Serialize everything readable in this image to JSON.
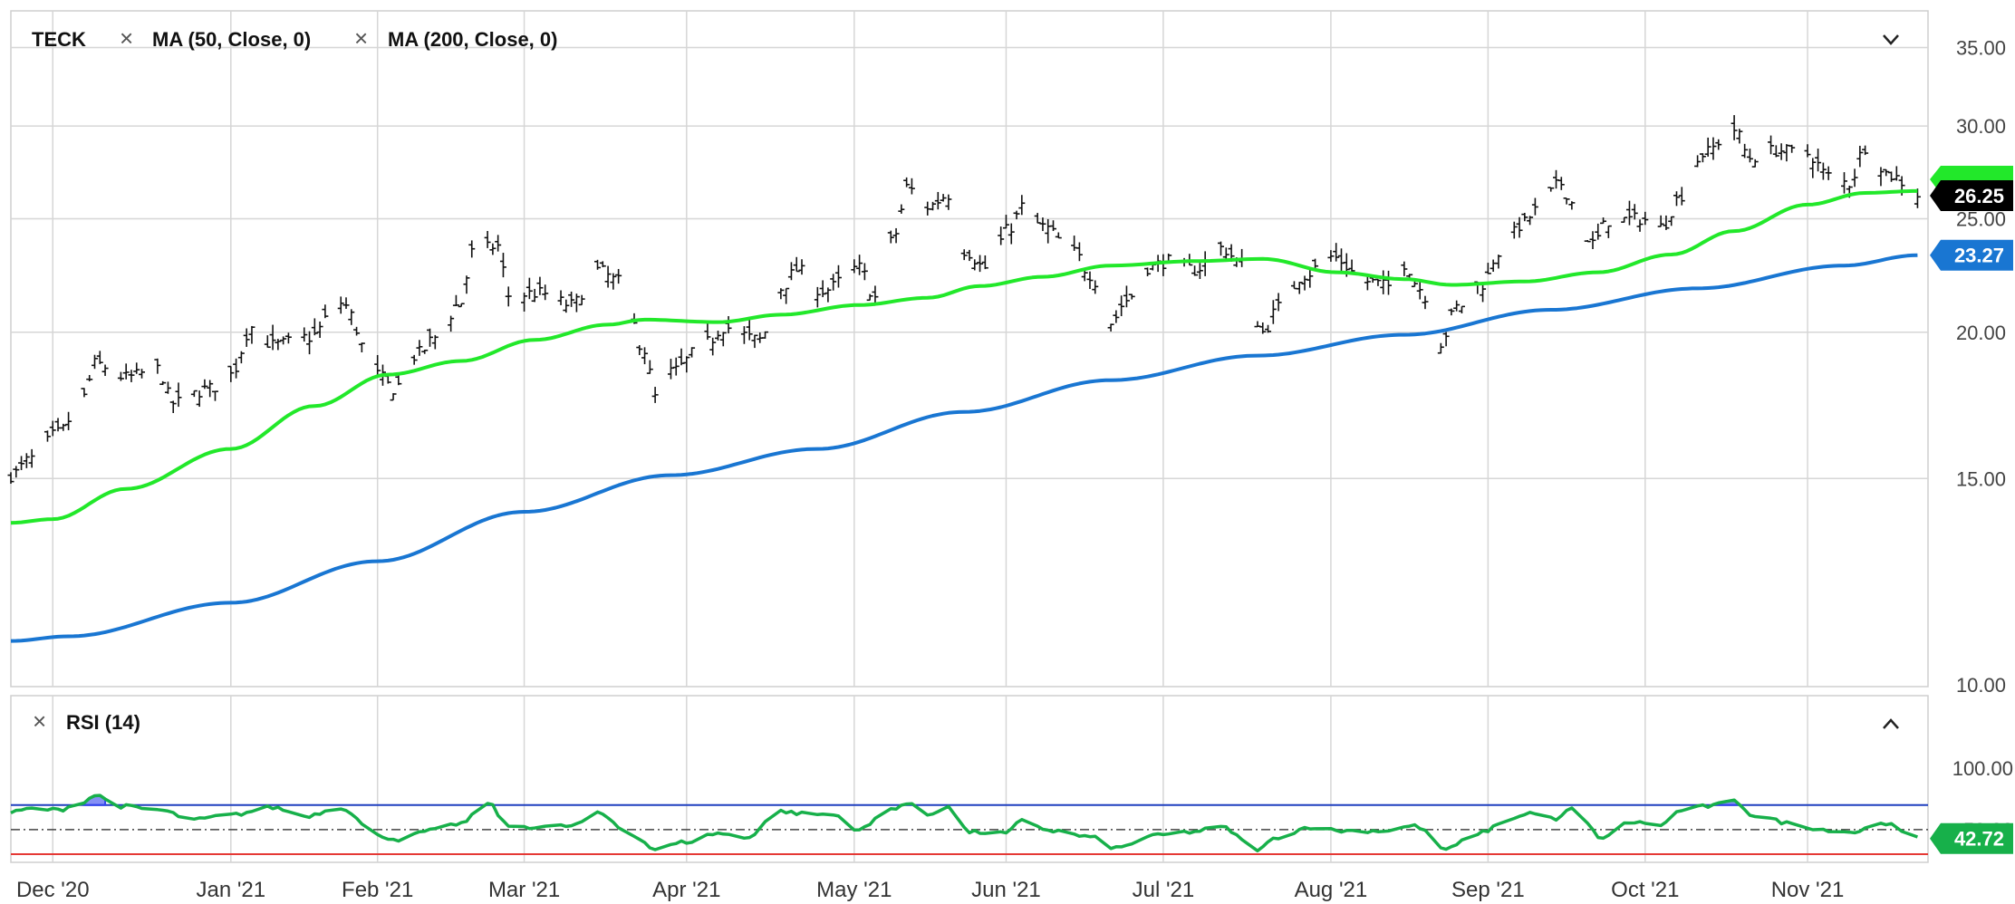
{
  "header": {
    "symbol": "TECK",
    "ma50_label": "MA (50, Close, 0)",
    "ma200_label": "MA (200, Close, 0)",
    "rsi_label": "RSI (14)"
  },
  "colors": {
    "price_bar": "#111111",
    "ma50": "#22e82a",
    "ma200": "#1976d2",
    "rsi_line": "#17b04a",
    "rsi_over": "#3344ee",
    "rsi_upper": "#1f3fbf",
    "rsi_lower": "#e53935",
    "grid": "#d6d6d6",
    "badge_price": "#000000",
    "badge_ma200": "#1976d2",
    "badge_rsi": "#17b04a"
  },
  "chart_data": [
    {
      "type": "ohlc",
      "scale": "log",
      "ylim": [
        10,
        36
      ],
      "y_ticks": [
        "35.00",
        "30.00",
        "25.00",
        "20.00",
        "15.00",
        "10.00"
      ],
      "x_ticks": [
        "Dec '20",
        "Jan '21",
        "Feb '21",
        "Mar '21",
        "Apr '21",
        "May '21",
        "Jun '21",
        "Jul '21",
        "Aug '21",
        "Sep '21",
        "Oct '21",
        "Nov '21"
      ],
      "x_range": [
        "2020-11-23",
        "2021-11-24"
      ],
      "price_anchors": [
        [
          "2020-11-23",
          15.1
        ],
        [
          "2020-11-27",
          15.6
        ],
        [
          "2020-12-02",
          16.4
        ],
        [
          "2020-12-07",
          17.6
        ],
        [
          "2020-12-09",
          18.8
        ],
        [
          "2020-12-15",
          18.3
        ],
        [
          "2020-12-21",
          18.6
        ],
        [
          "2020-12-24",
          17.4
        ],
        [
          "2020-12-31",
          17.9
        ],
        [
          "2021-01-04",
          18.4
        ],
        [
          "2021-01-08",
          20.2
        ],
        [
          "2021-01-12",
          19.5
        ],
        [
          "2021-01-19",
          19.8
        ],
        [
          "2021-01-25",
          21.2
        ],
        [
          "2021-02-01",
          18.4
        ],
        [
          "2021-02-04",
          17.9
        ],
        [
          "2021-02-09",
          19.2
        ],
        [
          "2021-02-12",
          19.8
        ],
        [
          "2021-02-17",
          21.2
        ],
        [
          "2021-02-19",
          23.4
        ],
        [
          "2021-02-24",
          23.7
        ],
        [
          "2021-02-26",
          21.5
        ],
        [
          "2021-03-04",
          21.6
        ],
        [
          "2021-03-10",
          21.1
        ],
        [
          "2021-03-15",
          22.6
        ],
        [
          "2021-03-19",
          22.1
        ],
        [
          "2021-03-24",
          19.3
        ],
        [
          "2021-03-26",
          17.6
        ],
        [
          "2021-03-29",
          18.5
        ],
        [
          "2021-04-05",
          19.6
        ],
        [
          "2021-04-08",
          20.2
        ],
        [
          "2021-04-15",
          19.7
        ],
        [
          "2021-04-19",
          21.8
        ],
        [
          "2021-04-22",
          22.6
        ],
        [
          "2021-04-27",
          21.7
        ],
        [
          "2021-05-04",
          22.7
        ],
        [
          "2021-05-07",
          21.4
        ],
        [
          "2021-05-11",
          24.3
        ],
        [
          "2021-05-13",
          26.6
        ],
        [
          "2021-05-17",
          25.6
        ],
        [
          "2021-05-21",
          26.2
        ],
        [
          "2021-05-24",
          23.5
        ],
        [
          "2021-05-28",
          22.7
        ],
        [
          "2021-06-02",
          24.6
        ],
        [
          "2021-06-04",
          25.6
        ],
        [
          "2021-06-08",
          24.6
        ],
        [
          "2021-06-14",
          23.4
        ],
        [
          "2021-06-17",
          22.4
        ],
        [
          "2021-06-21",
          20.4
        ],
        [
          "2021-06-24",
          21.3
        ],
        [
          "2021-06-28",
          22.7
        ],
        [
          "2021-07-02",
          23.0
        ],
        [
          "2021-07-07",
          22.6
        ],
        [
          "2021-07-12",
          23.6
        ],
        [
          "2021-07-16",
          22.9
        ],
        [
          "2021-07-20",
          20.0
        ],
        [
          "2021-07-23",
          21.0
        ],
        [
          "2021-07-28",
          22.4
        ],
        [
          "2021-08-02",
          23.2
        ],
        [
          "2021-08-09",
          22.1
        ],
        [
          "2021-08-13",
          21.9
        ],
        [
          "2021-08-16",
          22.9
        ],
        [
          "2021-08-19",
          21.8
        ],
        [
          "2021-08-23",
          19.6
        ],
        [
          "2021-08-26",
          21.0
        ],
        [
          "2021-08-31",
          22.0
        ],
        [
          "2021-09-03",
          23.4
        ],
        [
          "2021-09-08",
          24.8
        ],
        [
          "2021-09-10",
          25.4
        ],
        [
          "2021-09-15",
          26.8
        ],
        [
          "2021-09-17",
          25.8
        ],
        [
          "2021-09-21",
          23.8
        ],
        [
          "2021-09-24",
          24.9
        ],
        [
          "2021-09-30",
          25.0
        ],
        [
          "2021-10-04",
          24.6
        ],
        [
          "2021-10-08",
          26.2
        ],
        [
          "2021-10-12",
          28.4
        ],
        [
          "2021-10-18",
          29.8
        ],
        [
          "2021-10-21",
          28.2
        ],
        [
          "2021-10-26",
          28.6
        ],
        [
          "2021-11-01",
          28.4
        ],
        [
          "2021-11-05",
          27.2
        ],
        [
          "2021-11-09",
          26.8
        ],
        [
          "2021-11-12",
          28.8
        ],
        [
          "2021-11-17",
          27.2
        ],
        [
          "2021-11-22",
          26.25
        ]
      ],
      "ma50_anchors": [
        [
          "2020-11-23",
          13.75
        ],
        [
          "2020-12-01",
          13.85
        ],
        [
          "2020-12-15",
          14.7
        ],
        [
          "2021-01-04",
          15.9
        ],
        [
          "2021-01-20",
          17.3
        ],
        [
          "2021-02-03",
          18.4
        ],
        [
          "2021-02-17",
          18.9
        ],
        [
          "2021-03-03",
          19.7
        ],
        [
          "2021-03-17",
          20.3
        ],
        [
          "2021-03-24",
          20.5
        ],
        [
          "2021-04-07",
          20.4
        ],
        [
          "2021-04-19",
          20.7
        ],
        [
          "2021-05-04",
          21.1
        ],
        [
          "2021-05-17",
          21.4
        ],
        [
          "2021-05-27",
          21.9
        ],
        [
          "2021-06-08",
          22.3
        ],
        [
          "2021-06-21",
          22.8
        ],
        [
          "2021-07-07",
          23.0
        ],
        [
          "2021-07-20",
          23.1
        ],
        [
          "2021-08-03",
          22.5
        ],
        [
          "2021-08-16",
          22.2
        ],
        [
          "2021-08-25",
          21.95
        ],
        [
          "2021-09-08",
          22.1
        ],
        [
          "2021-09-22",
          22.5
        ],
        [
          "2021-10-06",
          23.3
        ],
        [
          "2021-10-18",
          24.4
        ],
        [
          "2021-11-01",
          25.7
        ],
        [
          "2021-11-12",
          26.3
        ],
        [
          "2021-11-22",
          26.4
        ]
      ],
      "ma200_anchors": [
        [
          "2020-11-23",
          10.9
        ],
        [
          "2020-12-04",
          11.0
        ],
        [
          "2021-01-04",
          11.75
        ],
        [
          "2021-02-01",
          12.75
        ],
        [
          "2021-03-01",
          14.05
        ],
        [
          "2021-03-29",
          15.1
        ],
        [
          "2021-04-26",
          15.9
        ],
        [
          "2021-05-24",
          17.1
        ],
        [
          "2021-06-21",
          18.2
        ],
        [
          "2021-07-19",
          19.1
        ],
        [
          "2021-08-16",
          19.9
        ],
        [
          "2021-09-13",
          20.9
        ],
        [
          "2021-10-11",
          21.8
        ],
        [
          "2021-11-08",
          22.8
        ],
        [
          "2021-11-22",
          23.27
        ]
      ],
      "last_price": "26.25",
      "ma200_last": "23.27"
    },
    {
      "type": "line",
      "title": "RSI (14)",
      "ylim": [
        30,
        100
      ],
      "y_ticks": [
        "100.00",
        "50.00"
      ],
      "upper": 70,
      "lower": 30,
      "mid": 50,
      "rsi_anchors": [
        [
          "2020-11-23",
          64
        ],
        [
          "2020-11-27",
          67
        ],
        [
          "2020-12-02",
          66
        ],
        [
          "2020-12-07",
          73
        ],
        [
          "2020-12-09",
          78
        ],
        [
          "2020-12-14",
          69
        ],
        [
          "2020-12-21",
          66
        ],
        [
          "2020-12-28",
          58
        ],
        [
          "2021-01-04",
          62
        ],
        [
          "2021-01-12",
          68
        ],
        [
          "2021-01-18",
          61
        ],
        [
          "2021-01-25",
          68
        ],
        [
          "2021-02-01",
          45
        ],
        [
          "2021-02-05",
          42
        ],
        [
          "2021-02-11",
          49
        ],
        [
          "2021-02-17",
          55
        ],
        [
          "2021-02-22",
          72
        ],
        [
          "2021-02-26",
          53
        ],
        [
          "2021-03-04",
          52
        ],
        [
          "2021-03-10",
          53
        ],
        [
          "2021-03-15",
          63
        ],
        [
          "2021-03-22",
          45
        ],
        [
          "2021-03-26",
          34
        ],
        [
          "2021-04-01",
          40
        ],
        [
          "2021-04-07",
          47
        ],
        [
          "2021-04-12",
          43
        ],
        [
          "2021-04-19",
          65
        ],
        [
          "2021-04-23",
          63
        ],
        [
          "2021-04-29",
          62
        ],
        [
          "2021-05-04",
          50
        ],
        [
          "2021-05-10",
          67
        ],
        [
          "2021-05-13",
          71
        ],
        [
          "2021-05-17",
          62
        ],
        [
          "2021-05-21",
          69
        ],
        [
          "2021-05-25",
          48
        ],
        [
          "2021-06-01",
          47
        ],
        [
          "2021-06-04",
          57
        ],
        [
          "2021-06-10",
          49
        ],
        [
          "2021-06-17",
          44
        ],
        [
          "2021-06-22",
          35
        ],
        [
          "2021-06-29",
          45
        ],
        [
          "2021-07-06",
          48
        ],
        [
          "2021-07-12",
          52
        ],
        [
          "2021-07-19",
          34
        ],
        [
          "2021-07-23",
          44
        ],
        [
          "2021-07-29",
          52
        ],
        [
          "2021-08-04",
          49
        ],
        [
          "2021-08-12",
          49
        ],
        [
          "2021-08-18",
          53
        ],
        [
          "2021-08-24",
          34
        ],
        [
          "2021-08-30",
          47
        ],
        [
          "2021-09-06",
          60
        ],
        [
          "2021-09-10",
          64
        ],
        [
          "2021-09-14",
          58
        ],
        [
          "2021-09-17",
          67
        ],
        [
          "2021-09-23",
          43
        ],
        [
          "2021-09-28",
          56
        ],
        [
          "2021-10-04",
          54
        ],
        [
          "2021-10-08",
          66
        ],
        [
          "2021-10-13",
          69
        ],
        [
          "2021-10-18",
          73
        ],
        [
          "2021-10-22",
          61
        ],
        [
          "2021-10-29",
          55
        ],
        [
          "2021-11-04",
          50
        ],
        [
          "2021-11-10",
          48
        ],
        [
          "2021-11-15",
          56
        ],
        [
          "2021-11-22",
          42.72
        ]
      ],
      "last_value": "42.72"
    }
  ]
}
